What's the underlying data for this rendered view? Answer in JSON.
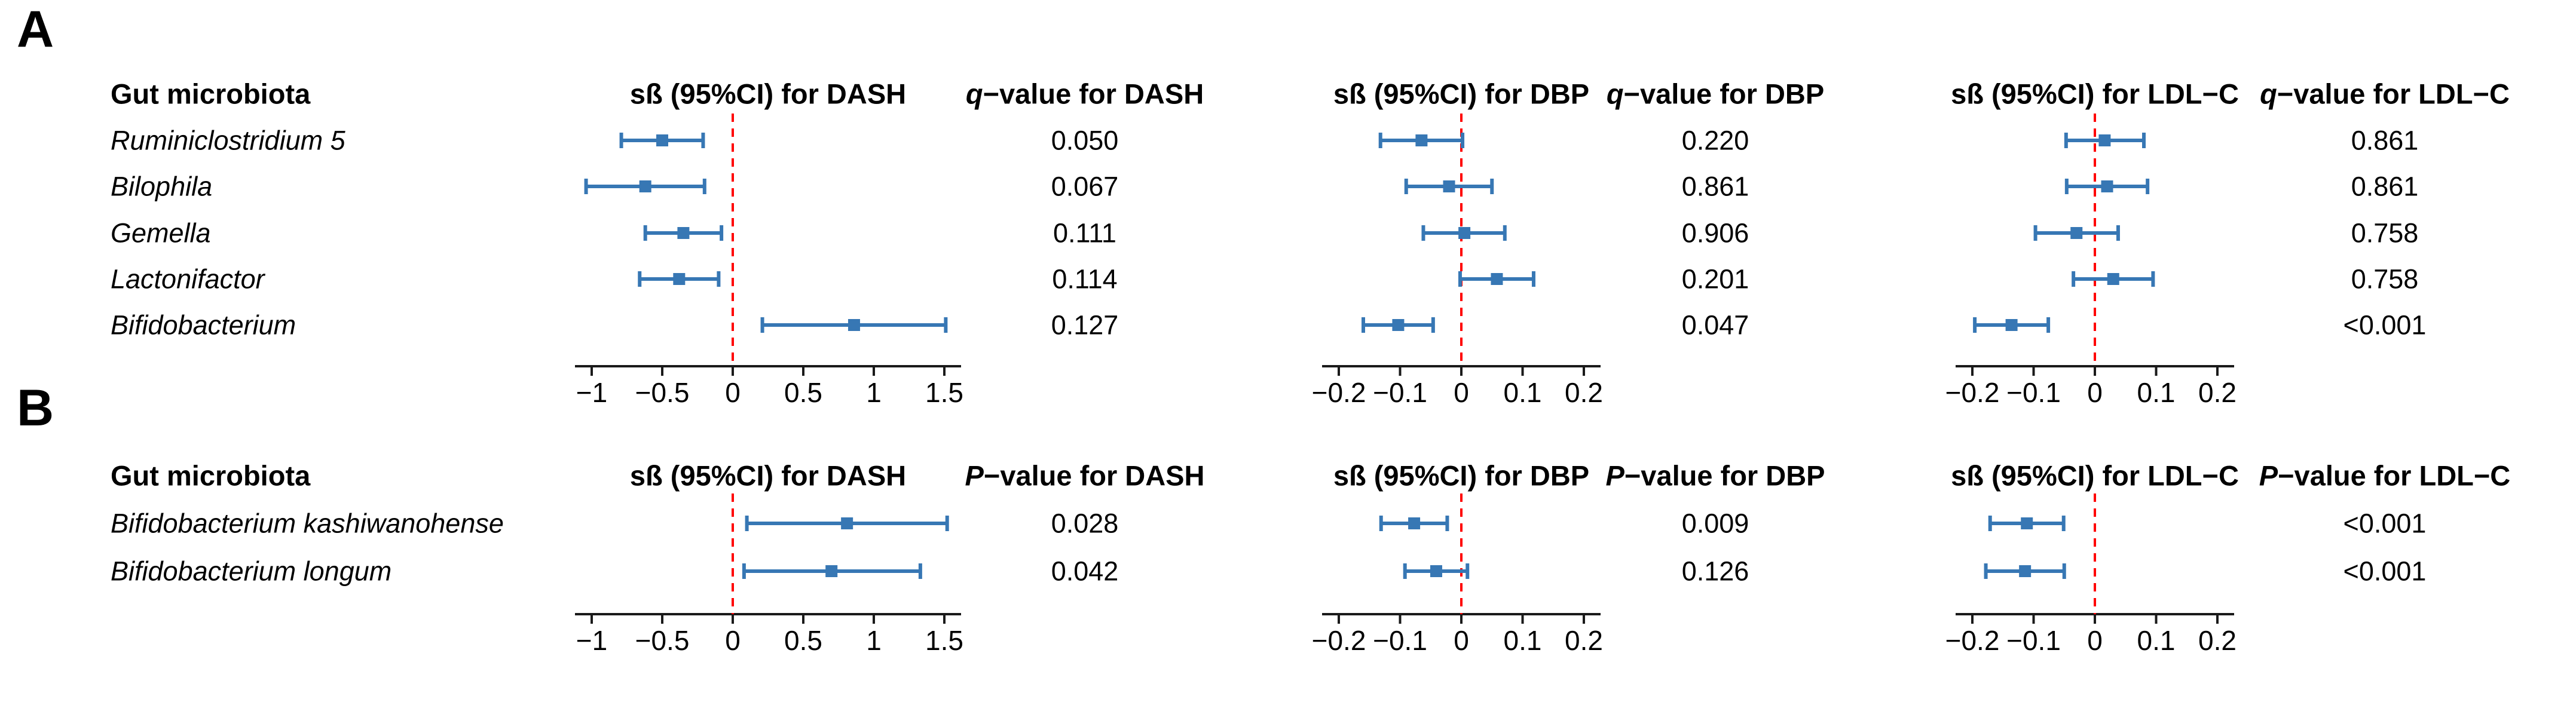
{
  "colors": {
    "bar": "#3777b4",
    "zero_line": "#ff0000",
    "axis": "#1a1a1a",
    "text": "#000000",
    "background": "#ffffff"
  },
  "chart_data": [
    {
      "type": "forest",
      "panel_label": "A",
      "taxon_header": "Gut microbiota",
      "stat_letter": "q",
      "legend": "none",
      "plots": [
        {
          "key": "dash",
          "header": "sß (95%CI) for DASH",
          "stat_header_rest": "−value for DASH",
          "xlim": [
            -1,
            1.5
          ],
          "tick_values": [
            -1,
            -0.5,
            0,
            0.5,
            1,
            1.5
          ],
          "ticks": [
            "−1",
            "−0.5",
            "0",
            "0.5",
            "1",
            "1.5"
          ],
          "zero_line": 0
        },
        {
          "key": "dbp",
          "header": "sß (95%CI) for DBP",
          "stat_header_rest": "−value for DBP",
          "xlim": [
            -0.2,
            0.2
          ],
          "tick_values": [
            -0.2,
            -0.1,
            0,
            0.1,
            0.2
          ],
          "ticks": [
            "−0.2",
            "−0.1",
            "0",
            "0.1",
            "0.2"
          ],
          "zero_line": 0
        },
        {
          "key": "ldl",
          "header": "sß (95%CI) for LDL−C",
          "stat_header_rest": "−value for LDL−C",
          "xlim": [
            -0.2,
            0.2
          ],
          "tick_values": [
            -0.2,
            -0.1,
            0,
            0.1,
            0.2
          ],
          "ticks": [
            "−0.2",
            "−0.1",
            "0",
            "0.1",
            "0.2"
          ],
          "zero_line": 0
        }
      ],
      "rows": [
        {
          "taxon": "Ruminiclostridium 5",
          "ci": [
            {
              "est": -0.5,
              "lo": -0.79,
              "hi": -0.21
            },
            {
              "est": -0.065,
              "lo": -0.132,
              "hi": 0.002
            },
            {
              "est": 0.016,
              "lo": -0.047,
              "hi": 0.08
            }
          ],
          "stats": [
            "0.050",
            "0.220",
            "0.861"
          ]
        },
        {
          "taxon": "Bilophila",
          "ci": [
            {
              "est": -0.62,
              "lo": -1.04,
              "hi": -0.2
            },
            {
              "est": -0.02,
              "lo": -0.09,
              "hi": 0.05
            },
            {
              "est": 0.02,
              "lo": -0.046,
              "hi": 0.086
            }
          ],
          "stats": [
            "0.067",
            "0.861",
            "0.861"
          ]
        },
        {
          "taxon": "Gemella",
          "ci": [
            {
              "est": -0.35,
              "lo": -0.62,
              "hi": -0.08
            },
            {
              "est": 0.005,
              "lo": -0.062,
              "hi": 0.071
            },
            {
              "est": -0.03,
              "lo": -0.097,
              "hi": 0.038
            }
          ],
          "stats": [
            "0.111",
            "0.906",
            "0.758"
          ]
        },
        {
          "taxon": "Lactonifactor",
          "ci": [
            {
              "est": -0.38,
              "lo": -0.66,
              "hi": -0.1
            },
            {
              "est": 0.058,
              "lo": -0.002,
              "hi": 0.118
            },
            {
              "est": 0.03,
              "lo": -0.035,
              "hi": 0.095
            }
          ],
          "stats": [
            "0.114",
            "0.201",
            "0.758"
          ]
        },
        {
          "taxon": "Bifidobacterium",
          "ci": [
            {
              "est": 0.86,
              "lo": 0.21,
              "hi": 1.51
            },
            {
              "est": -0.103,
              "lo": -0.16,
              "hi": -0.046
            },
            {
              "est": -0.136,
              "lo": -0.196,
              "hi": -0.076
            }
          ],
          "stats": [
            "0.127",
            "0.047",
            "<0.001"
          ]
        }
      ]
    },
    {
      "type": "forest",
      "panel_label": "B",
      "taxon_header": "Gut microbiota",
      "stat_letter": "P",
      "legend": "none",
      "plots": [
        {
          "key": "dash",
          "header": "sß (95%CI) for DASH",
          "stat_header_rest": "−value for DASH",
          "xlim": [
            -1,
            1.5
          ],
          "tick_values": [
            -1,
            -0.5,
            0,
            0.5,
            1,
            1.5
          ],
          "ticks": [
            "−1",
            "−0.5",
            "0",
            "0.5",
            "1",
            "1.5"
          ],
          "zero_line": 0
        },
        {
          "key": "dbp",
          "header": "sß (95%CI) for DBP",
          "stat_header_rest": "−value for DBP",
          "xlim": [
            -0.2,
            0.2
          ],
          "tick_values": [
            -0.2,
            -0.1,
            0,
            0.1,
            0.2
          ],
          "ticks": [
            "−0.2",
            "−0.1",
            "0",
            "0.1",
            "0.2"
          ],
          "zero_line": 0
        },
        {
          "key": "ldl",
          "header": "sß (95%CI) for LDL−C",
          "stat_header_rest": "−value for LDL−C",
          "xlim": [
            -0.2,
            0.2
          ],
          "tick_values": [
            -0.2,
            -0.1,
            0,
            0.1,
            0.2
          ],
          "ticks": [
            "−0.2",
            "−0.1",
            "0",
            "0.1",
            "0.2"
          ],
          "zero_line": 0
        }
      ],
      "rows": [
        {
          "taxon": "Bifidobacterium kashiwanohense",
          "ci": [
            {
              "est": 0.81,
              "lo": 0.1,
              "hi": 1.52
            },
            {
              "est": -0.077,
              "lo": -0.131,
              "hi": -0.023
            },
            {
              "est": -0.111,
              "lo": -0.171,
              "hi": -0.051
            }
          ],
          "stats": [
            "0.028",
            "0.009",
            "<0.001"
          ]
        },
        {
          "taxon": "Bifidobacterium longum",
          "ci": [
            {
              "est": 0.7,
              "lo": 0.08,
              "hi": 1.33
            },
            {
              "est": -0.041,
              "lo": -0.092,
              "hi": 0.01
            },
            {
              "est": -0.114,
              "lo": -0.178,
              "hi": -0.05
            }
          ],
          "stats": [
            "0.042",
            "0.126",
            "<0.001"
          ]
        }
      ]
    }
  ]
}
